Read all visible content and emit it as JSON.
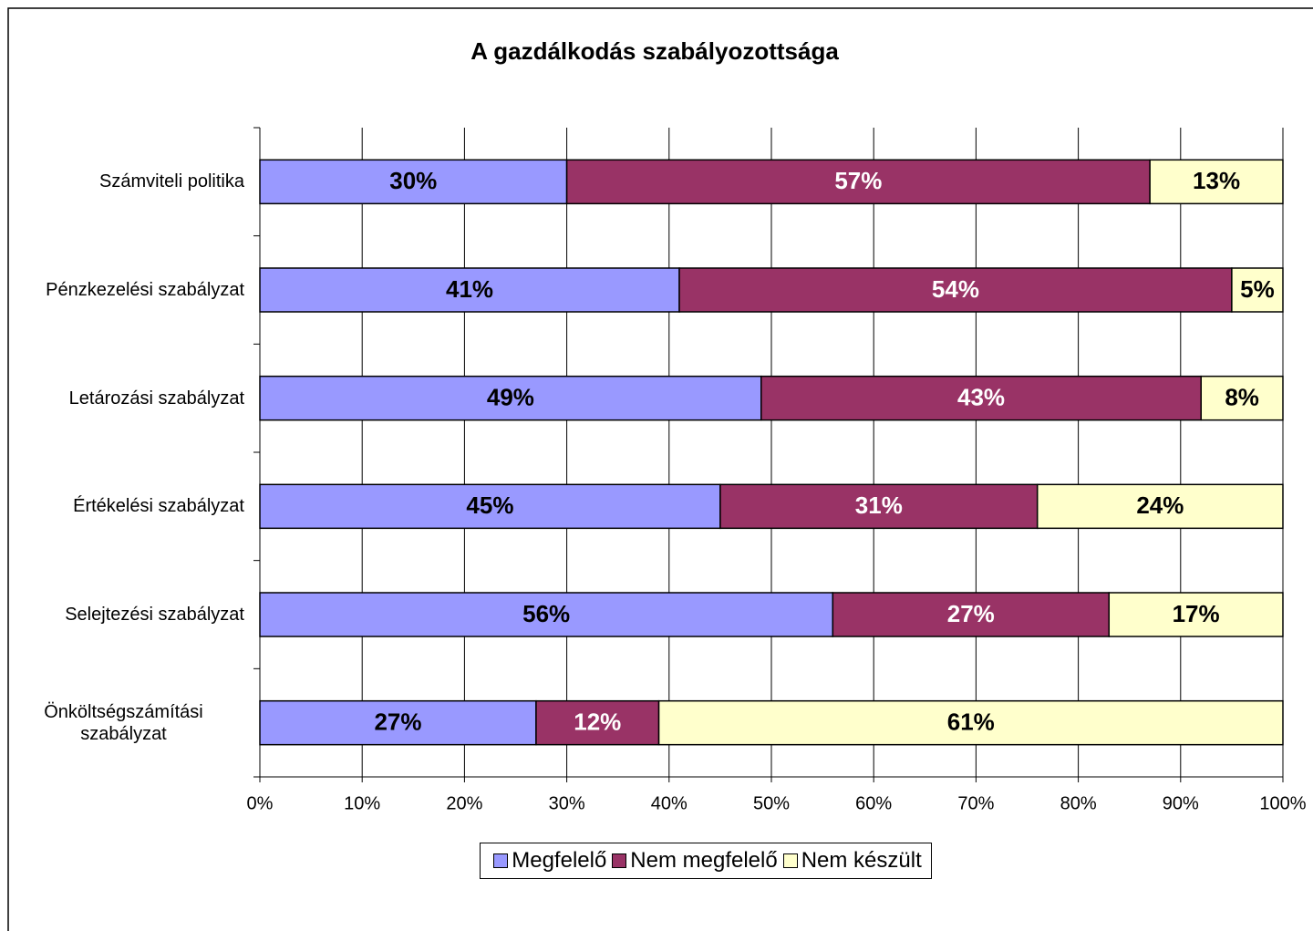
{
  "chart_data": {
    "type": "stacked_bar_horizontal",
    "title": "A gazdálkodás szabályozottsága",
    "categories": [
      "Számviteli politika",
      "Pénzkezelési szabályzat",
      "Letározási szabályzat",
      "Értékelési szabályzat",
      "Selejtezési szabályzat",
      "Önköltségszámítási szabályzat"
    ],
    "series": [
      {
        "name": "Megfelelő",
        "color": "#9999ff",
        "label_color": "#000000",
        "values": [
          30,
          41,
          49,
          45,
          56,
          27
        ],
        "value_labels": [
          "30%",
          "41%",
          "49%",
          "45%",
          "56%",
          "27%"
        ]
      },
      {
        "name": "Nem megfelelő",
        "color": "#993366",
        "label_color": "#ffffff",
        "values": [
          57,
          54,
          43,
          31,
          27,
          12
        ],
        "value_labels": [
          "57%",
          "54%",
          "43%",
          "31%",
          "27%",
          "12%"
        ]
      },
      {
        "name": "Nem készült",
        "color": "#ffffcc",
        "label_color": "#000000",
        "values": [
          13,
          5,
          8,
          24,
          17,
          61
        ],
        "value_labels": [
          "13%",
          "5%",
          "8%",
          "24%",
          "17%",
          "61%"
        ]
      }
    ],
    "xlim": [
      0,
      100
    ],
    "xticks": [
      {
        "value": 0,
        "label": "0%"
      },
      {
        "value": 10,
        "label": "10%"
      },
      {
        "value": 20,
        "label": "20%"
      },
      {
        "value": 30,
        "label": "30%"
      },
      {
        "value": 40,
        "label": "40%"
      },
      {
        "value": 50,
        "label": "50%"
      },
      {
        "value": 60,
        "label": "60%"
      },
      {
        "value": 70,
        "label": "70%"
      },
      {
        "value": 80,
        "label": "80%"
      },
      {
        "value": 90,
        "label": "90%"
      },
      {
        "value": 100,
        "label": "100%"
      }
    ],
    "grid": true,
    "legend": "bottom"
  }
}
